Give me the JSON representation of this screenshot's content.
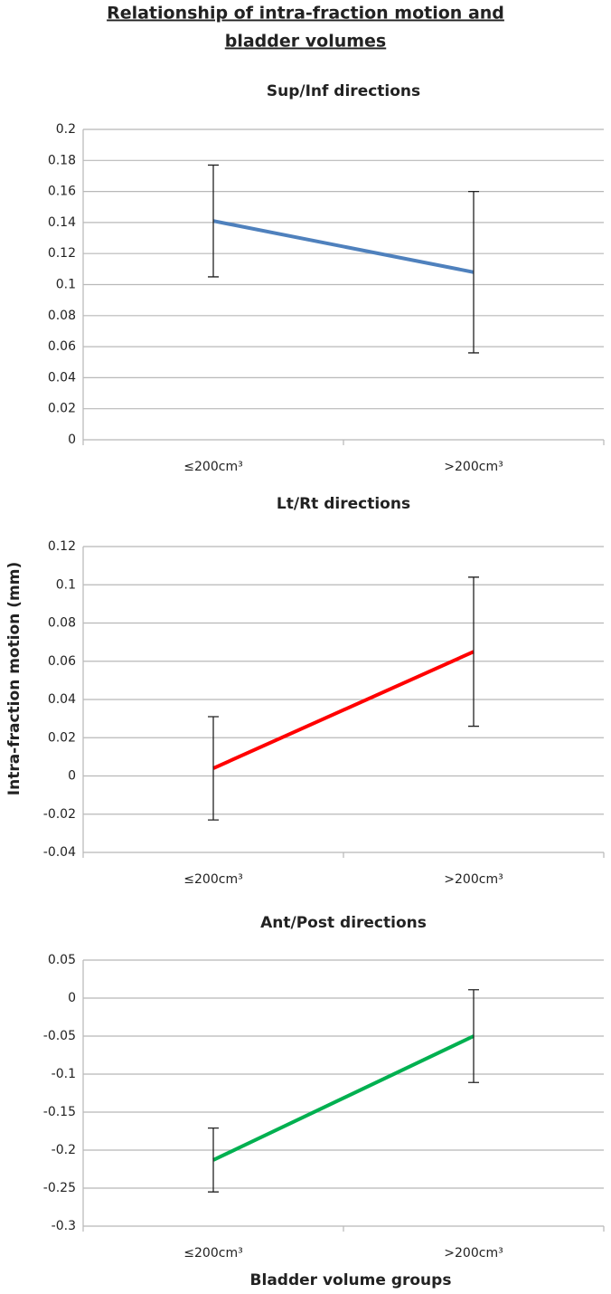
{
  "title": [
    "Relationship of intra-fraction  motion and",
    "bladder volumes"
  ],
  "ylabel": "Intra-fraction  motion (mm)",
  "xlabel": "Bladder volume groups",
  "chart_data": [
    {
      "type": "line",
      "title": "Sup/Inf directions",
      "categories": [
        "≤200cm³",
        ">200cm³"
      ],
      "values": [
        0.141,
        0.108
      ],
      "errors": [
        0.036,
        0.052
      ],
      "color": "#4f81bd",
      "ylim": [
        0,
        0.2
      ],
      "yticks": [
        0,
        0.02,
        0.04,
        0.06,
        0.08,
        0.1,
        0.12,
        0.14,
        0.16,
        0.18,
        0.2
      ],
      "grid": true
    },
    {
      "type": "line",
      "title": "Lt/Rt directions",
      "categories": [
        "≤200cm³",
        ">200cm³"
      ],
      "values": [
        0.004,
        0.065
      ],
      "errors": [
        0.027,
        0.039
      ],
      "color": "#ff0000",
      "ylim": [
        -0.04,
        0.12
      ],
      "yticks": [
        -0.04,
        -0.02,
        0,
        0.02,
        0.04,
        0.06,
        0.08,
        0.1,
        0.12
      ],
      "grid": true
    },
    {
      "type": "line",
      "title": "Ant/Post directions",
      "categories": [
        "≤200cm³",
        ">200cm³"
      ],
      "values": [
        -0.213,
        -0.05
      ],
      "errors": [
        0.042,
        0.061
      ],
      "color": "#00b050",
      "ylim": [
        -0.3,
        0.05
      ],
      "yticks": [
        -0.3,
        -0.25,
        -0.2,
        -0.15,
        -0.1,
        -0.05,
        0,
        0.05
      ],
      "grid": true
    }
  ]
}
